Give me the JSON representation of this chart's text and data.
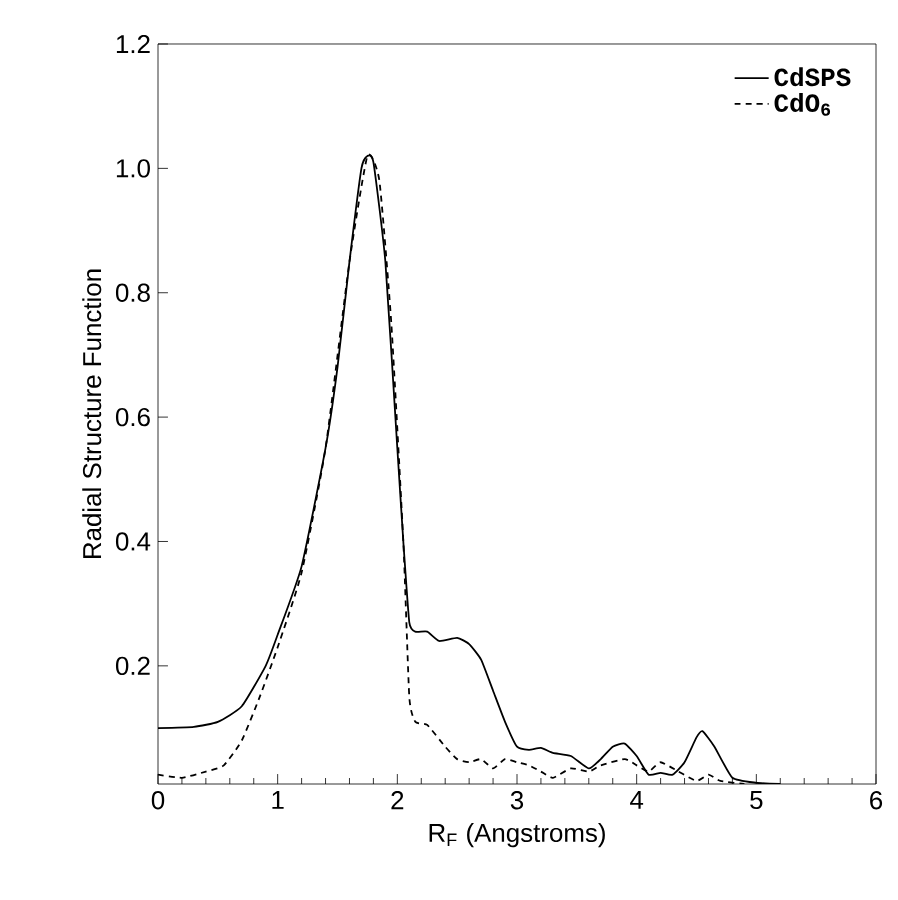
{
  "chart_data": {
    "type": "line",
    "xlabel": "R$_{F}$ (Angstroms)",
    "ylabel": "Radial Structure Function",
    "xlim": [
      0,
      6
    ],
    "ylim": [
      0.01,
      1.2
    ],
    "xticks": [
      0,
      1,
      2,
      3,
      4,
      5,
      6
    ],
    "yticks": [
      0.2,
      0.4,
      0.6,
      0.8,
      {
        "value": 1,
        "label": "1.0"
      },
      1.2
    ],
    "legend": "top right",
    "grid": false,
    "series": [
      {
        "name": "CdSPS",
        "color": "#000000",
        "line_style": "solid",
        "x": [
          0,
          0.3,
          0.5,
          0.7,
          0.9,
          1.0,
          1.2,
          1.4,
          1.5,
          1.6,
          1.7,
          1.75,
          1.8,
          1.9,
          2.0,
          2.05,
          2.1,
          2.15,
          2.25,
          2.35,
          2.5,
          2.6,
          2.7,
          2.8,
          2.9,
          3.0,
          3.1,
          3.2,
          3.3,
          3.45,
          3.6,
          3.7,
          3.8,
          3.9,
          4.0,
          4.1,
          4.2,
          4.3,
          4.4,
          4.5,
          4.55,
          4.65,
          4.8,
          5.0,
          5.2
        ],
        "values": [
          0.1,
          0.102,
          0.11,
          0.135,
          0.2,
          0.25,
          0.36,
          0.55,
          0.68,
          0.85,
          1.0,
          1.02,
          1.01,
          0.85,
          0.55,
          0.4,
          0.27,
          0.255,
          0.255,
          0.24,
          0.245,
          0.235,
          0.21,
          0.16,
          0.11,
          0.07,
          0.065,
          0.068,
          0.06,
          0.055,
          0.035,
          0.05,
          0.07,
          0.075,
          0.055,
          0.025,
          0.028,
          0.025,
          0.045,
          0.085,
          0.095,
          0.07,
          0.02,
          0.012,
          0.01
        ]
      },
      {
        "name": "CdO$_{6}$",
        "color": "#000000",
        "line_style": "dashed",
        "x": [
          0,
          0.2,
          0.4,
          0.55,
          0.7,
          0.85,
          1.0,
          1.2,
          1.4,
          1.6,
          1.75,
          1.85,
          1.95,
          2.05,
          2.1,
          2.15,
          2.25,
          2.4,
          2.5,
          2.6,
          2.7,
          2.8,
          2.9,
          3.0,
          3.1,
          3.2,
          3.3,
          3.45,
          3.6,
          3.7,
          3.9,
          4.0,
          4.1,
          4.2,
          4.35,
          4.5,
          4.6,
          4.7,
          4.9
        ],
        "values": [
          0.025,
          0.02,
          0.03,
          0.04,
          0.08,
          0.15,
          0.23,
          0.35,
          0.55,
          0.85,
          1.02,
          0.98,
          0.75,
          0.4,
          0.15,
          0.11,
          0.105,
          0.07,
          0.05,
          0.045,
          0.05,
          0.035,
          0.05,
          0.045,
          0.04,
          0.03,
          0.02,
          0.035,
          0.03,
          0.04,
          0.05,
          0.04,
          0.03,
          0.045,
          0.03,
          0.015,
          0.025,
          0.015,
          0.01
        ]
      }
    ]
  }
}
